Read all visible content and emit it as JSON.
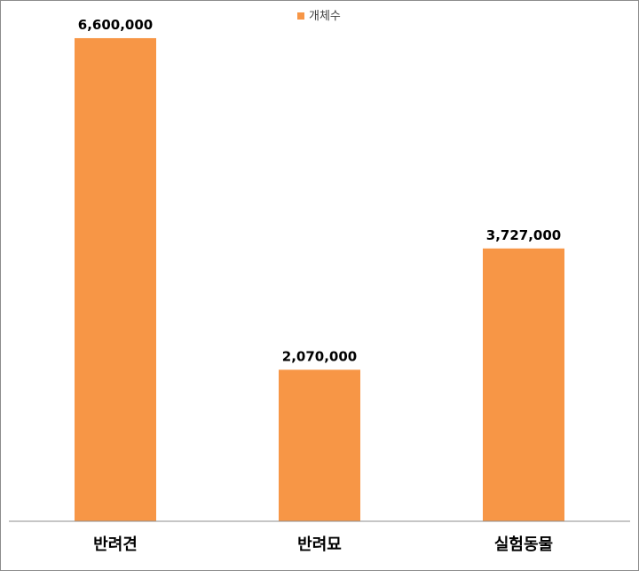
{
  "chart_data": {
    "type": "bar",
    "categories": [
      "반려견",
      "반려묘",
      "실험동물"
    ],
    "series": [
      {
        "name": "개체수",
        "values": [
          6600000,
          2070000,
          3727000
        ],
        "labels": [
          "6,600,000",
          "2,070,000",
          "3,727,000"
        ],
        "color": "#F79646"
      }
    ],
    "title": "",
    "xlabel": "",
    "ylabel": "",
    "ylim": [
      0,
      7000000
    ],
    "legend_position": "top-center",
    "grid": false
  }
}
